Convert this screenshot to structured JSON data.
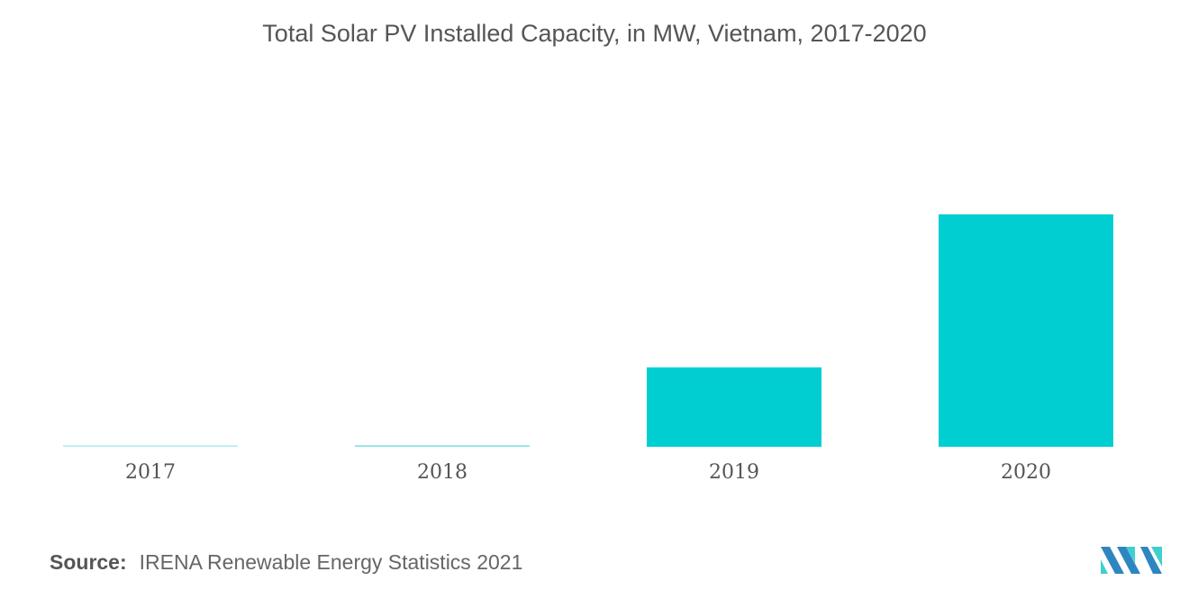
{
  "title": "Total Solar PV Installed Capacity, in MW, Vietnam, 2017-2020",
  "source": {
    "label": "Source:",
    "text": "IRENA Renewable Energy Statistics 2021"
  },
  "logo": {
    "icon": "mordor-intelligence-logo-icon",
    "colors": [
      "#2e86c1",
      "#3ecfcf"
    ]
  },
  "chart_data": {
    "type": "bar",
    "title": "Total Solar PV Installed Capacity, in MW, Vietnam, 2017-2020",
    "xlabel": "",
    "ylabel": "",
    "categories": [
      "2017",
      "2018",
      "2019",
      "2020"
    ],
    "values": [
      105,
      106,
      5695,
      16660
    ],
    "ylim": [
      0,
      16660
    ],
    "grid": false,
    "legend": "none",
    "colors": {
      "bar": "#00ced1",
      "bar_light": "#b2ecf0"
    }
  }
}
